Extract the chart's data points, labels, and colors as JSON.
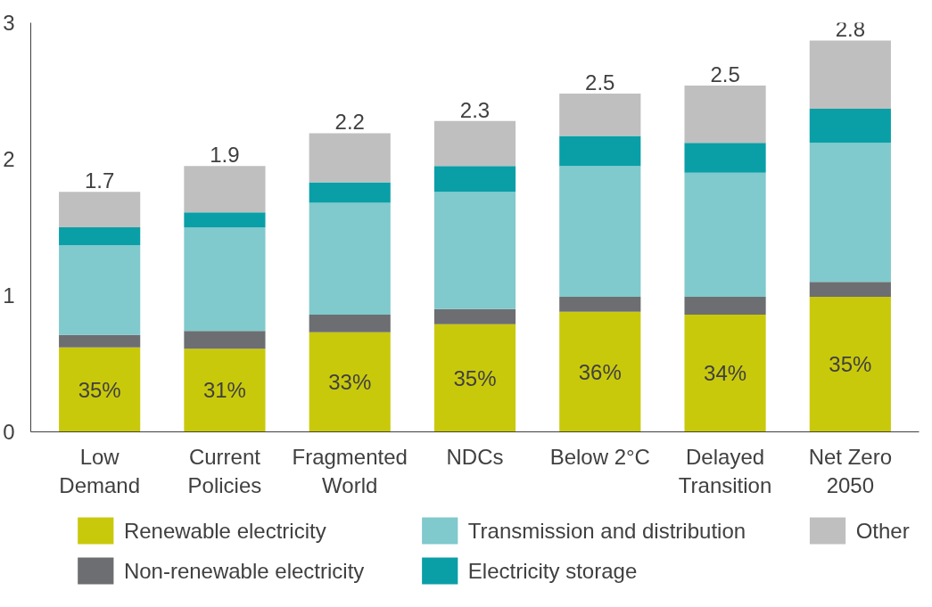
{
  "chart_data": {
    "type": "bar",
    "stacked": true,
    "categories": [
      "Low\nDemand",
      "Current\nPolicies",
      "Fragmented\nWorld",
      "NDCs",
      "Below 2°C",
      "Delayed\nTransition",
      "Net Zero\n2050"
    ],
    "series": [
      {
        "name": "Renewable electricity",
        "color": "#c9c90c",
        "values": [
          0.62,
          0.61,
          0.73,
          0.79,
          0.88,
          0.86,
          0.99
        ]
      },
      {
        "name": "Non-renewable electricity",
        "color": "#6d6e71",
        "values": [
          0.09,
          0.13,
          0.13,
          0.11,
          0.11,
          0.13,
          0.11
        ]
      },
      {
        "name": "Transmission and distribution",
        "color": "#80c9cc",
        "values": [
          0.66,
          0.76,
          0.82,
          0.86,
          0.96,
          0.91,
          1.02
        ]
      },
      {
        "name": "Electricity storage",
        "color": "#0a9fa6",
        "values": [
          0.13,
          0.11,
          0.15,
          0.19,
          0.22,
          0.22,
          0.25
        ]
      },
      {
        "name": "Other",
        "color": "#bfbfbf",
        "values": [
          0.26,
          0.34,
          0.36,
          0.33,
          0.31,
          0.42,
          0.5
        ]
      }
    ],
    "annotations": [
      "35%",
      "31%",
      "33%",
      "35%",
      "36%",
      "34%",
      "35%"
    ],
    "totals": [
      "1.7",
      "1.9",
      "2.2",
      "2.3",
      "2.5",
      "2.5",
      "2.8"
    ],
    "ylim": [
      0,
      3
    ],
    "yticks": [
      0,
      1,
      2,
      3
    ],
    "grid": false,
    "legend": "bottom"
  }
}
